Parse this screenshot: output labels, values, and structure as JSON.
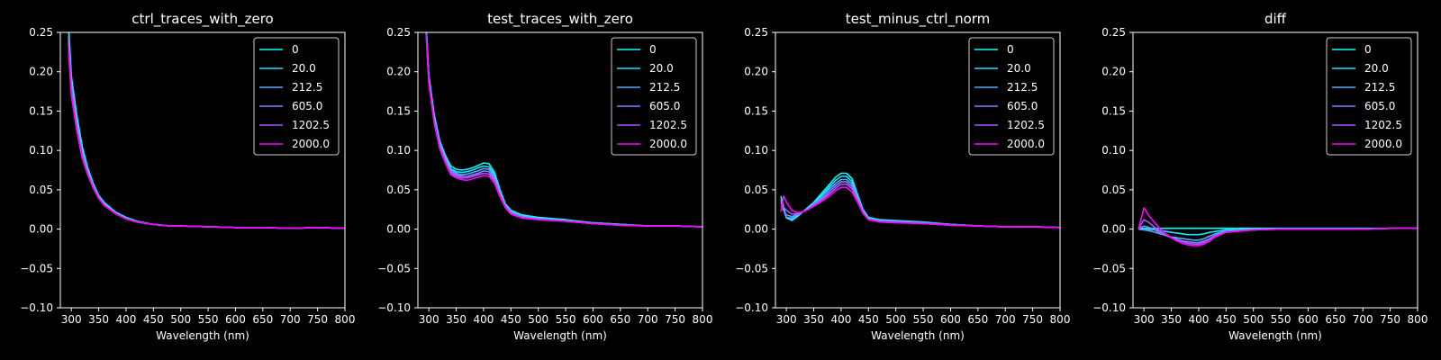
{
  "figure": {
    "background": "#000000",
    "foreground": "#ffffff"
  },
  "series_names": [
    "0",
    "20.0",
    "212.5",
    "605.0",
    "1202.5",
    "2000.0"
  ],
  "series_colors": [
    "#00ffff",
    "#1ae5ff",
    "#55aaff",
    "#7f80ff",
    "#aa55ff",
    "#ff00ff"
  ],
  "chart_data": [
    {
      "type": "line",
      "title": "ctrl_traces_with_zero",
      "xlabel": "Wavelength (nm)",
      "ylabel": "",
      "xlim": [
        280,
        800
      ],
      "ylim": [
        -0.1,
        0.25
      ],
      "xticks": [
        "300",
        "350",
        "400",
        "450",
        "500",
        "550",
        "600",
        "650",
        "700",
        "750",
        "800"
      ],
      "yticks": [
        "−0.10",
        "−0.05",
        "0.00",
        "0.05",
        "0.10",
        "0.15",
        "0.20",
        "0.25"
      ],
      "legend": "top-right",
      "grid": false,
      "x": [
        295,
        300,
        310,
        320,
        330,
        340,
        350,
        360,
        370,
        380,
        400,
        420,
        450,
        480,
        500,
        550,
        600,
        650,
        700,
        750,
        800
      ],
      "series": [
        {
          "name": "0",
          "values": [
            0.26,
            0.195,
            0.145,
            0.105,
            0.078,
            0.058,
            0.043,
            0.034,
            0.028,
            0.022,
            0.015,
            0.01,
            0.006,
            0.004,
            0.004,
            0.003,
            0.002,
            0.002,
            0.001,
            0.002,
            0.001
          ]
        },
        {
          "name": "20.0",
          "values": [
            0.255,
            0.19,
            0.14,
            0.1,
            0.076,
            0.056,
            0.042,
            0.033,
            0.027,
            0.021,
            0.014,
            0.009,
            0.006,
            0.004,
            0.004,
            0.003,
            0.002,
            0.002,
            0.001,
            0.002,
            0.001
          ]
        },
        {
          "name": "212.5",
          "values": [
            0.245,
            0.185,
            0.135,
            0.098,
            0.074,
            0.055,
            0.041,
            0.032,
            0.026,
            0.021,
            0.014,
            0.009,
            0.006,
            0.004,
            0.004,
            0.003,
            0.002,
            0.002,
            0.001,
            0.002,
            0.001
          ]
        },
        {
          "name": "605.0",
          "values": [
            0.24,
            0.18,
            0.13,
            0.095,
            0.072,
            0.054,
            0.04,
            0.031,
            0.026,
            0.02,
            0.013,
            0.009,
            0.006,
            0.004,
            0.004,
            0.003,
            0.002,
            0.002,
            0.001,
            0.002,
            0.001
          ]
        },
        {
          "name": "1202.5",
          "values": [
            0.235,
            0.175,
            0.128,
            0.093,
            0.07,
            0.053,
            0.04,
            0.031,
            0.025,
            0.02,
            0.013,
            0.009,
            0.006,
            0.004,
            0.004,
            0.003,
            0.002,
            0.002,
            0.001,
            0.002,
            0.001
          ]
        },
        {
          "name": "2000.0",
          "values": [
            0.225,
            0.17,
            0.125,
            0.09,
            0.069,
            0.052,
            0.039,
            0.03,
            0.025,
            0.02,
            0.013,
            0.009,
            0.006,
            0.004,
            0.004,
            0.003,
            0.002,
            0.002,
            0.001,
            0.002,
            0.001
          ]
        }
      ]
    },
    {
      "type": "line",
      "title": "test_traces_with_zero",
      "xlabel": "Wavelength (nm)",
      "ylabel": "",
      "xlim": [
        280,
        800
      ],
      "ylim": [
        -0.1,
        0.25
      ],
      "xticks": [
        "300",
        "350",
        "400",
        "450",
        "500",
        "550",
        "600",
        "650",
        "700",
        "750",
        "800"
      ],
      "yticks": [
        "−0.10",
        "−0.05",
        "0.00",
        "0.05",
        "0.10",
        "0.15",
        "0.20",
        "0.25"
      ],
      "legend": "top-right",
      "grid": false,
      "x": [
        295,
        300,
        310,
        320,
        330,
        340,
        350,
        360,
        370,
        380,
        390,
        400,
        410,
        420,
        430,
        440,
        450,
        470,
        500,
        550,
        600,
        650,
        700,
        750,
        800
      ],
      "series": [
        {
          "name": "0",
          "values": [
            0.26,
            0.195,
            0.145,
            0.112,
            0.094,
            0.08,
            0.076,
            0.075,
            0.076,
            0.078,
            0.081,
            0.084,
            0.083,
            0.072,
            0.05,
            0.032,
            0.024,
            0.018,
            0.015,
            0.012,
            0.008,
            0.006,
            0.004,
            0.004,
            0.003
          ]
        },
        {
          "name": "20.0",
          "values": [
            0.258,
            0.193,
            0.142,
            0.11,
            0.092,
            0.077,
            0.073,
            0.072,
            0.073,
            0.075,
            0.078,
            0.08,
            0.079,
            0.069,
            0.048,
            0.031,
            0.023,
            0.017,
            0.014,
            0.011,
            0.008,
            0.006,
            0.004,
            0.004,
            0.003
          ]
        },
        {
          "name": "212.5",
          "values": [
            0.255,
            0.19,
            0.14,
            0.108,
            0.09,
            0.075,
            0.071,
            0.069,
            0.07,
            0.072,
            0.074,
            0.077,
            0.076,
            0.066,
            0.046,
            0.03,
            0.022,
            0.016,
            0.013,
            0.011,
            0.008,
            0.006,
            0.004,
            0.004,
            0.003
          ]
        },
        {
          "name": "605.0",
          "values": [
            0.252,
            0.188,
            0.138,
            0.106,
            0.088,
            0.073,
            0.069,
            0.067,
            0.067,
            0.069,
            0.071,
            0.074,
            0.073,
            0.063,
            0.044,
            0.029,
            0.021,
            0.015,
            0.013,
            0.01,
            0.007,
            0.005,
            0.004,
            0.004,
            0.003
          ]
        },
        {
          "name": "1202.5",
          "values": [
            0.25,
            0.186,
            0.136,
            0.104,
            0.086,
            0.071,
            0.067,
            0.065,
            0.065,
            0.067,
            0.069,
            0.071,
            0.07,
            0.061,
            0.043,
            0.028,
            0.02,
            0.015,
            0.012,
            0.01,
            0.007,
            0.005,
            0.004,
            0.004,
            0.003
          ]
        },
        {
          "name": "2000.0",
          "values": [
            0.248,
            0.184,
            0.134,
            0.102,
            0.084,
            0.069,
            0.065,
            0.063,
            0.062,
            0.064,
            0.066,
            0.068,
            0.067,
            0.058,
            0.041,
            0.027,
            0.019,
            0.014,
            0.012,
            0.01,
            0.007,
            0.005,
            0.004,
            0.004,
            0.003
          ]
        }
      ]
    },
    {
      "type": "line",
      "title": "test_minus_ctrl_norm",
      "xlabel": "Wavelength (nm)",
      "ylabel": "",
      "xlim": [
        280,
        800
      ],
      "ylim": [
        -0.1,
        0.25
      ],
      "xticks": [
        "300",
        "350",
        "400",
        "450",
        "500",
        "550",
        "600",
        "650",
        "700",
        "750",
        "800"
      ],
      "yticks": [
        "−0.10",
        "−0.05",
        "0.00",
        "0.05",
        "0.10",
        "0.15",
        "0.20",
        "0.25"
      ],
      "legend": "top-right",
      "grid": false,
      "x": [
        290,
        295,
        300,
        310,
        320,
        330,
        340,
        350,
        360,
        370,
        380,
        390,
        400,
        410,
        420,
        430,
        440,
        450,
        470,
        500,
        550,
        600,
        650,
        700,
        750,
        800
      ],
      "series": [
        {
          "name": "0",
          "values": [
            0.042,
            0.028,
            0.015,
            0.011,
            0.016,
            0.022,
            0.028,
            0.034,
            0.042,
            0.05,
            0.058,
            0.066,
            0.071,
            0.071,
            0.064,
            0.044,
            0.025,
            0.015,
            0.012,
            0.011,
            0.009,
            0.006,
            0.004,
            0.003,
            0.003,
            0.002
          ]
        },
        {
          "name": "20.0",
          "values": [
            0.038,
            0.025,
            0.014,
            0.012,
            0.017,
            0.022,
            0.027,
            0.033,
            0.04,
            0.047,
            0.055,
            0.062,
            0.067,
            0.067,
            0.06,
            0.042,
            0.024,
            0.014,
            0.011,
            0.01,
            0.008,
            0.006,
            0.004,
            0.003,
            0.003,
            0.002
          ]
        },
        {
          "name": "212.5",
          "values": [
            0.034,
            0.024,
            0.015,
            0.014,
            0.018,
            0.022,
            0.026,
            0.032,
            0.038,
            0.045,
            0.052,
            0.058,
            0.063,
            0.063,
            0.057,
            0.04,
            0.023,
            0.013,
            0.011,
            0.01,
            0.008,
            0.006,
            0.004,
            0.003,
            0.003,
            0.002
          ]
        },
        {
          "name": "605.0",
          "values": [
            0.03,
            0.024,
            0.018,
            0.016,
            0.019,
            0.022,
            0.026,
            0.031,
            0.036,
            0.042,
            0.049,
            0.055,
            0.06,
            0.06,
            0.054,
            0.038,
            0.022,
            0.013,
            0.01,
            0.009,
            0.008,
            0.006,
            0.004,
            0.003,
            0.003,
            0.002
          ]
        },
        {
          "name": "1202.5",
          "values": [
            0.026,
            0.028,
            0.024,
            0.019,
            0.02,
            0.022,
            0.025,
            0.03,
            0.035,
            0.04,
            0.046,
            0.052,
            0.057,
            0.057,
            0.051,
            0.036,
            0.021,
            0.012,
            0.01,
            0.009,
            0.007,
            0.005,
            0.004,
            0.003,
            0.003,
            0.002
          ]
        },
        {
          "name": "2000.0",
          "values": [
            0.022,
            0.042,
            0.034,
            0.024,
            0.021,
            0.022,
            0.025,
            0.029,
            0.033,
            0.038,
            0.043,
            0.049,
            0.053,
            0.053,
            0.047,
            0.034,
            0.02,
            0.012,
            0.009,
            0.008,
            0.007,
            0.005,
            0.004,
            0.003,
            0.003,
            0.002
          ]
        }
      ]
    },
    {
      "type": "line",
      "title": "diff",
      "xlabel": "Wavelength (nm)",
      "ylabel": "",
      "xlim": [
        280,
        800
      ],
      "ylim": [
        -0.1,
        0.25
      ],
      "xticks": [
        "300",
        "350",
        "400",
        "450",
        "500",
        "550",
        "600",
        "650",
        "700",
        "750",
        "800"
      ],
      "yticks": [
        "−0.10",
        "−0.05",
        "0.00",
        "0.05",
        "0.10",
        "0.15",
        "0.20",
        "0.25"
      ],
      "legend": "top-right",
      "grid": false,
      "x": [
        290,
        300,
        310,
        320,
        330,
        340,
        350,
        360,
        370,
        380,
        390,
        400,
        410,
        420,
        430,
        440,
        450,
        470,
        500,
        550,
        600,
        650,
        700,
        750,
        800
      ],
      "series": [
        {
          "name": "0",
          "values": [
            0.001,
            0.001,
            0.001,
            0.001,
            0.001,
            0.001,
            0.001,
            0.001,
            0.001,
            0.001,
            0.001,
            0.001,
            0.001,
            0.001,
            0.001,
            0.001,
            0.001,
            0.001,
            0.001,
            0.001,
            0.001,
            0.001,
            0.001,
            0.001,
            0.001
          ]
        },
        {
          "name": "20.0",
          "values": [
            0.0,
            0.001,
            0.0,
            -0.001,
            -0.002,
            -0.003,
            -0.004,
            -0.005,
            -0.006,
            -0.007,
            -0.007,
            -0.007,
            -0.006,
            -0.004,
            -0.003,
            -0.002,
            -0.001,
            -0.001,
            0.0,
            0.0,
            0.0,
            0.0,
            0.0,
            0.001,
            0.001
          ]
        },
        {
          "name": "212.5",
          "values": [
            0.0,
            -0.001,
            -0.002,
            -0.004,
            -0.006,
            -0.008,
            -0.01,
            -0.011,
            -0.012,
            -0.013,
            -0.014,
            -0.014,
            -0.012,
            -0.009,
            -0.006,
            -0.004,
            -0.003,
            -0.002,
            -0.001,
            0.0,
            0.0,
            0.0,
            0.0,
            0.001,
            0.001
          ]
        },
        {
          "name": "605.0",
          "values": [
            0.0,
            0.004,
            0.002,
            -0.001,
            -0.005,
            -0.008,
            -0.011,
            -0.013,
            -0.015,
            -0.016,
            -0.017,
            -0.017,
            -0.015,
            -0.012,
            -0.008,
            -0.005,
            -0.003,
            -0.002,
            -0.001,
            0.0,
            0.0,
            0.0,
            0.0,
            0.001,
            0.001
          ]
        },
        {
          "name": "1202.5",
          "values": [
            0.0,
            0.012,
            0.008,
            0.002,
            -0.003,
            -0.007,
            -0.011,
            -0.014,
            -0.016,
            -0.018,
            -0.019,
            -0.019,
            -0.017,
            -0.013,
            -0.009,
            -0.006,
            -0.004,
            -0.002,
            -0.001,
            0.0,
            0.0,
            0.0,
            0.0,
            0.001,
            0.001
          ]
        },
        {
          "name": "2000.0",
          "values": [
            0.0,
            0.027,
            0.016,
            0.008,
            0.0,
            -0.006,
            -0.011,
            -0.015,
            -0.018,
            -0.02,
            -0.021,
            -0.021,
            -0.019,
            -0.015,
            -0.01,
            -0.007,
            -0.004,
            -0.003,
            -0.001,
            0.0,
            0.0,
            0.0,
            0.0,
            0.001,
            0.001
          ]
        }
      ]
    }
  ]
}
